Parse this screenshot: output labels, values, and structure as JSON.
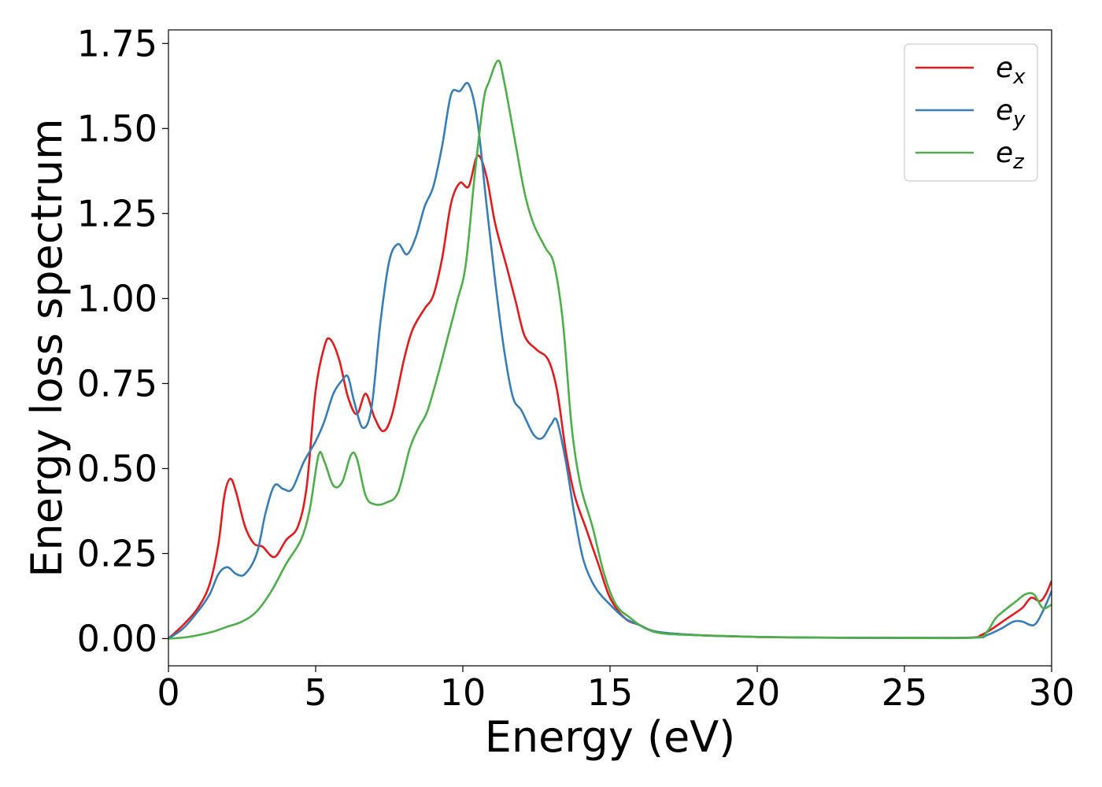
{
  "chart_data": {
    "type": "line",
    "title": "",
    "xlabel": "Energy (eV)",
    "ylabel": "Energy loss spectrum",
    "xlim": [
      0,
      30
    ],
    "ylim": [
      -0.08,
      1.79
    ],
    "xticks": [
      0,
      5,
      10,
      15,
      20,
      25,
      30
    ],
    "xtick_labels": [
      "0",
      "5",
      "10",
      "15",
      "20",
      "25",
      "30"
    ],
    "yticks": [
      0.0,
      0.25,
      0.5,
      0.75,
      1.0,
      1.25,
      1.5,
      1.75
    ],
    "ytick_labels": [
      "0.00",
      "0.25",
      "0.50",
      "0.75",
      "1.00",
      "1.25",
      "1.50",
      "1.75"
    ],
    "grid": false,
    "legend_position": "top-right",
    "series": [
      {
        "name": "e",
        "subscript": "x",
        "color": "#e41a1c",
        "points": [
          [
            0,
            0
          ],
          [
            0.5,
            0.04
          ],
          [
            1.0,
            0.09
          ],
          [
            1.4,
            0.16
          ],
          [
            1.7,
            0.28
          ],
          [
            1.9,
            0.42
          ],
          [
            2.1,
            0.47
          ],
          [
            2.3,
            0.43
          ],
          [
            2.6,
            0.33
          ],
          [
            2.9,
            0.28
          ],
          [
            3.2,
            0.27
          ],
          [
            3.6,
            0.24
          ],
          [
            4.0,
            0.29
          ],
          [
            4.4,
            0.33
          ],
          [
            4.7,
            0.45
          ],
          [
            5.0,
            0.73
          ],
          [
            5.3,
            0.86
          ],
          [
            5.5,
            0.88
          ],
          [
            5.8,
            0.82
          ],
          [
            6.1,
            0.71
          ],
          [
            6.4,
            0.66
          ],
          [
            6.7,
            0.72
          ],
          [
            7.0,
            0.65
          ],
          [
            7.3,
            0.61
          ],
          [
            7.6,
            0.66
          ],
          [
            8.0,
            0.82
          ],
          [
            8.3,
            0.91
          ],
          [
            8.7,
            0.97
          ],
          [
            9.0,
            1.01
          ],
          [
            9.3,
            1.12
          ],
          [
            9.6,
            1.28
          ],
          [
            9.9,
            1.34
          ],
          [
            10.2,
            1.33
          ],
          [
            10.5,
            1.42
          ],
          [
            10.8,
            1.36
          ],
          [
            11.1,
            1.22
          ],
          [
            11.5,
            1.09
          ],
          [
            11.8,
            0.99
          ],
          [
            12.1,
            0.89
          ],
          [
            12.5,
            0.85
          ],
          [
            12.9,
            0.82
          ],
          [
            13.2,
            0.73
          ],
          [
            13.5,
            0.55
          ],
          [
            13.8,
            0.42
          ],
          [
            14.2,
            0.32
          ],
          [
            14.6,
            0.22
          ],
          [
            15.0,
            0.12
          ],
          [
            15.5,
            0.06
          ],
          [
            16.0,
            0.04
          ],
          [
            16.6,
            0.02
          ],
          [
            18.0,
            0.01
          ],
          [
            20.0,
            0.005
          ],
          [
            22.0,
            0.003
          ],
          [
            25.0,
            0.002
          ],
          [
            27.2,
            0.003
          ],
          [
            27.6,
            0.01
          ],
          [
            28.0,
            0.03
          ],
          [
            28.5,
            0.06
          ],
          [
            29.0,
            0.09
          ],
          [
            29.3,
            0.12
          ],
          [
            29.6,
            0.11
          ],
          [
            29.8,
            0.13
          ],
          [
            30.0,
            0.17
          ]
        ]
      },
      {
        "name": "e",
        "subscript": "y",
        "color": "#377eb8",
        "points": [
          [
            0,
            0
          ],
          [
            0.5,
            0.03
          ],
          [
            1.0,
            0.08
          ],
          [
            1.4,
            0.13
          ],
          [
            1.7,
            0.19
          ],
          [
            2.0,
            0.21
          ],
          [
            2.3,
            0.19
          ],
          [
            2.6,
            0.19
          ],
          [
            3.0,
            0.25
          ],
          [
            3.3,
            0.37
          ],
          [
            3.6,
            0.45
          ],
          [
            3.9,
            0.44
          ],
          [
            4.2,
            0.44
          ],
          [
            4.6,
            0.52
          ],
          [
            5.0,
            0.58
          ],
          [
            5.3,
            0.64
          ],
          [
            5.6,
            0.72
          ],
          [
            5.9,
            0.76
          ],
          [
            6.1,
            0.77
          ],
          [
            6.3,
            0.7
          ],
          [
            6.6,
            0.62
          ],
          [
            6.9,
            0.68
          ],
          [
            7.2,
            0.93
          ],
          [
            7.5,
            1.11
          ],
          [
            7.8,
            1.16
          ],
          [
            8.1,
            1.13
          ],
          [
            8.4,
            1.18
          ],
          [
            8.7,
            1.27
          ],
          [
            9.0,
            1.33
          ],
          [
            9.3,
            1.45
          ],
          [
            9.6,
            1.6
          ],
          [
            9.9,
            1.61
          ],
          [
            10.2,
            1.63
          ],
          [
            10.5,
            1.52
          ],
          [
            10.8,
            1.28
          ],
          [
            11.1,
            1.05
          ],
          [
            11.4,
            0.85
          ],
          [
            11.7,
            0.71
          ],
          [
            12.0,
            0.67
          ],
          [
            12.4,
            0.6
          ],
          [
            12.7,
            0.59
          ],
          [
            13.0,
            0.63
          ],
          [
            13.2,
            0.64
          ],
          [
            13.5,
            0.52
          ],
          [
            13.8,
            0.36
          ],
          [
            14.1,
            0.23
          ],
          [
            14.5,
            0.15
          ],
          [
            15.0,
            0.1
          ],
          [
            15.5,
            0.06
          ],
          [
            16.0,
            0.04
          ],
          [
            16.6,
            0.02
          ],
          [
            18.0,
            0.01
          ],
          [
            20.0,
            0.005
          ],
          [
            22.0,
            0.003
          ],
          [
            25.0,
            0.002
          ],
          [
            27.4,
            0.003
          ],
          [
            27.8,
            0.01
          ],
          [
            28.3,
            0.03
          ],
          [
            28.7,
            0.05
          ],
          [
            29.0,
            0.05
          ],
          [
            29.4,
            0.04
          ],
          [
            29.7,
            0.08
          ],
          [
            30.0,
            0.14
          ]
        ]
      },
      {
        "name": "e",
        "subscript": "z",
        "color": "#4daf4a",
        "points": [
          [
            0,
            0
          ],
          [
            0.5,
            0.003
          ],
          [
            1.0,
            0.01
          ],
          [
            1.5,
            0.02
          ],
          [
            2.0,
            0.035
          ],
          [
            2.5,
            0.05
          ],
          [
            3.0,
            0.08
          ],
          [
            3.5,
            0.14
          ],
          [
            4.0,
            0.22
          ],
          [
            4.5,
            0.29
          ],
          [
            4.8,
            0.38
          ],
          [
            5.1,
            0.54
          ],
          [
            5.3,
            0.52
          ],
          [
            5.6,
            0.45
          ],
          [
            5.9,
            0.46
          ],
          [
            6.2,
            0.54
          ],
          [
            6.4,
            0.53
          ],
          [
            6.7,
            0.42
          ],
          [
            7.0,
            0.395
          ],
          [
            7.4,
            0.4
          ],
          [
            7.8,
            0.43
          ],
          [
            8.2,
            0.56
          ],
          [
            8.5,
            0.62
          ],
          [
            8.8,
            0.67
          ],
          [
            9.2,
            0.79
          ],
          [
            9.5,
            0.89
          ],
          [
            9.8,
            0.99
          ],
          [
            10.1,
            1.1
          ],
          [
            10.4,
            1.36
          ],
          [
            10.7,
            1.58
          ],
          [
            10.9,
            1.64
          ],
          [
            11.2,
            1.7
          ],
          [
            11.4,
            1.64
          ],
          [
            11.8,
            1.45
          ],
          [
            12.1,
            1.31
          ],
          [
            12.4,
            1.22
          ],
          [
            12.8,
            1.15
          ],
          [
            13.1,
            1.1
          ],
          [
            13.4,
            0.93
          ],
          [
            13.7,
            0.62
          ],
          [
            14.0,
            0.45
          ],
          [
            14.4,
            0.33
          ],
          [
            14.8,
            0.19
          ],
          [
            15.2,
            0.1
          ],
          [
            15.7,
            0.06
          ],
          [
            16.2,
            0.03
          ],
          [
            16.8,
            0.015
          ],
          [
            18.0,
            0.01
          ],
          [
            20.0,
            0.005
          ],
          [
            22.0,
            0.003
          ],
          [
            25.0,
            0.002
          ],
          [
            27.4,
            0.003
          ],
          [
            27.8,
            0.02
          ],
          [
            28.1,
            0.06
          ],
          [
            28.5,
            0.09
          ],
          [
            28.8,
            0.11
          ],
          [
            29.1,
            0.13
          ],
          [
            29.4,
            0.13
          ],
          [
            29.7,
            0.09
          ],
          [
            30.0,
            0.1
          ]
        ]
      }
    ]
  }
}
